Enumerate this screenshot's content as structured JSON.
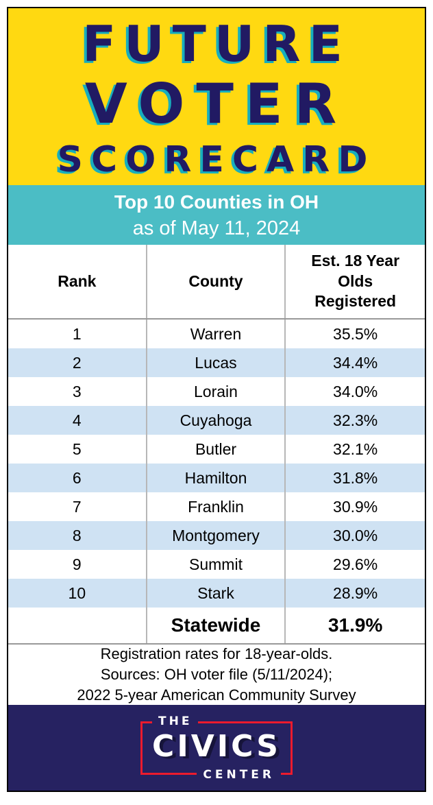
{
  "header": {
    "title_line1": "FUTURE",
    "title_line2": "VOTER",
    "title_line3": "SCORECARD"
  },
  "banner": {
    "line1": "Top 10 Counties in OH",
    "line2": "as of May 11, 2024"
  },
  "chart_data": {
    "type": "table",
    "title": "Future Voter Scorecard",
    "subtitle": "Top 10 Counties in OH as of May 11, 2024",
    "columns": [
      "Rank",
      "County",
      "Est. 18 Year Olds Registered"
    ],
    "rows": [
      [
        "1",
        "Warren",
        "35.5%"
      ],
      [
        "2",
        "Lucas",
        "34.4%"
      ],
      [
        "3",
        "Lorain",
        "34.0%"
      ],
      [
        "4",
        "Cuyahoga",
        "32.3%"
      ],
      [
        "5",
        "Butler",
        "32.1%"
      ],
      [
        "6",
        "Hamilton",
        "31.8%"
      ],
      [
        "7",
        "Franklin",
        "30.9%"
      ],
      [
        "8",
        "Montgomery",
        "30.0%"
      ],
      [
        "9",
        "Summit",
        "29.6%"
      ],
      [
        "10",
        "Stark",
        "28.9%"
      ]
    ],
    "summary_row": [
      "",
      "Statewide",
      "31.9%"
    ],
    "units": "percent of estimated 18-year-olds registered",
    "value_range": [
      28.9,
      35.5
    ]
  },
  "footnote": {
    "line1": "Registration rates for 18-year-olds.",
    "line2": "Sources: OH voter file (5/11/2024);",
    "line3": "2022 5-year American Community Survey"
  },
  "logo": {
    "the": "THE",
    "civics": "CIVICS",
    "center": "CENTER"
  },
  "colors": {
    "yellow": "#FFD911",
    "title_navy": "#211A63",
    "title_shadow_teal": "#17AEBD",
    "banner_teal": "#4BBDC5",
    "row_alt_blue": "#CFE2F3",
    "footer_navy": "#262261",
    "logo_red": "#EC1B2D",
    "divider_gray": "#B7B7B7"
  }
}
